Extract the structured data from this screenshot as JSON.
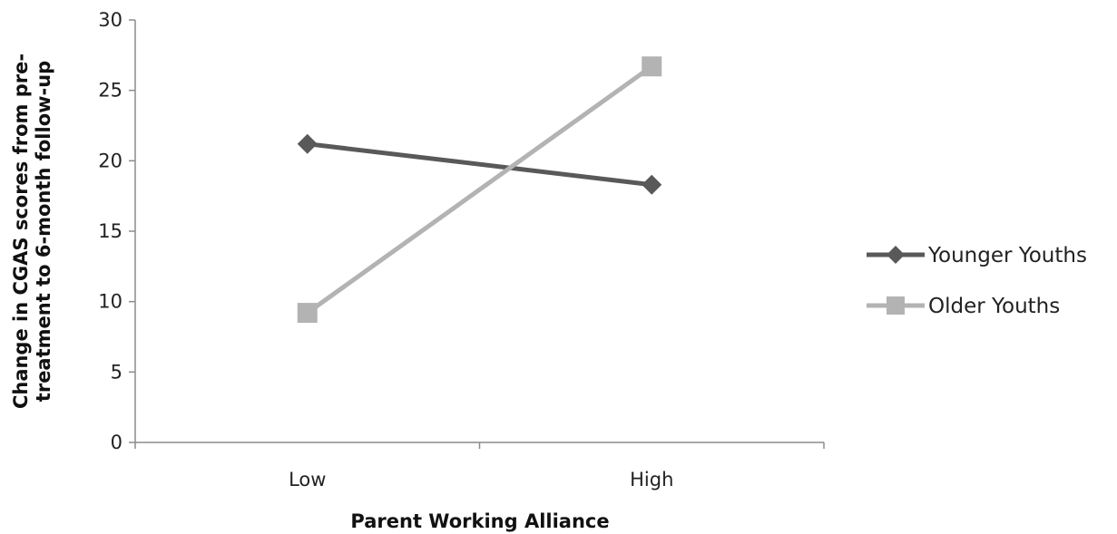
{
  "chart_data": {
    "type": "line",
    "categories": [
      "Low",
      "High"
    ],
    "series": [
      {
        "name": "Younger Youths",
        "values": [
          21.2,
          18.3
        ],
        "color": "#595959",
        "marker": "diamond"
      },
      {
        "name": "Older Youths",
        "values": [
          9.2,
          26.7
        ],
        "color": "#b3b3b3",
        "marker": "square"
      }
    ],
    "xlabel": "Parent Working Alliance",
    "ylabel_lines": [
      "Change in CGAS scores from pre-",
      "treatment to 6-month follow-up"
    ],
    "ylim": [
      0,
      30
    ],
    "yticks": [
      "0",
      "5",
      "10",
      "15",
      "20",
      "25",
      "30"
    ],
    "ytick_values": [
      0,
      5,
      10,
      15,
      20,
      25,
      30
    ],
    "grid": false,
    "legend_position": "right"
  }
}
